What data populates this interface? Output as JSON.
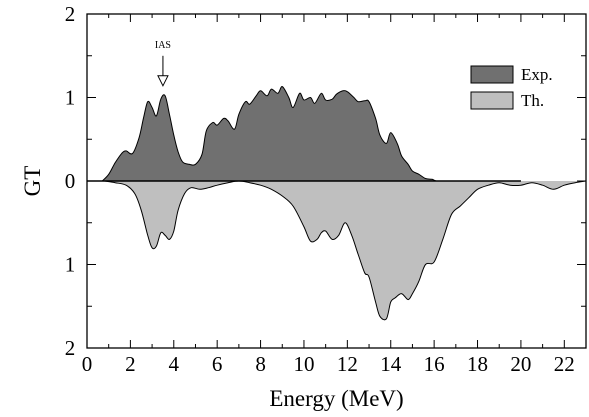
{
  "chart_data": {
    "type": "area",
    "xlabel": "Energy (MeV)",
    "ylabel": "GT",
    "xlim": [
      0,
      23
    ],
    "ylim": [
      -2,
      2
    ],
    "x_ticks": [
      0,
      2,
      4,
      6,
      8,
      10,
      12,
      14,
      16,
      18,
      20,
      22
    ],
    "x_tick_labels": [
      "0",
      "2",
      "4",
      "6",
      "8",
      "10",
      "12",
      "14",
      "16",
      "18",
      "20",
      "22"
    ],
    "y_ticks": [
      2,
      1,
      0,
      -1,
      -2
    ],
    "y_tick_labels": [
      "2",
      "1",
      "0",
      "1",
      "2"
    ],
    "grid": false,
    "legend_position": "top-right",
    "colors": {
      "exp": "#707070",
      "th": "#bfbfbf",
      "outline": "#000000"
    },
    "series": [
      {
        "name": "Exp.",
        "x": [
          0.7,
          1.0,
          1.3,
          1.6,
          1.8,
          2.1,
          2.4,
          2.6,
          2.8,
          3.0,
          3.2,
          3.4,
          3.6,
          3.8,
          4.0,
          4.2,
          4.4,
          4.7,
          5.0,
          5.3,
          5.5,
          5.8,
          6.0,
          6.3,
          6.5,
          6.8,
          7.0,
          7.3,
          7.5,
          7.8,
          8.0,
          8.3,
          8.5,
          8.8,
          9.0,
          9.3,
          9.5,
          9.8,
          10.0,
          10.3,
          10.5,
          10.8,
          11.0,
          11.3,
          11.5,
          11.8,
          12.0,
          12.3,
          12.5,
          12.8,
          13.0,
          13.3,
          13.5,
          13.8,
          14.0,
          14.3,
          14.5,
          14.8,
          15.0,
          15.3,
          15.6,
          15.9,
          16.1,
          16.5,
          17.0,
          18.0,
          20.0
        ],
        "y": [
          0.0,
          0.08,
          0.22,
          0.33,
          0.36,
          0.33,
          0.52,
          0.75,
          0.95,
          0.88,
          0.78,
          0.98,
          1.02,
          0.8,
          0.55,
          0.35,
          0.23,
          0.2,
          0.2,
          0.32,
          0.6,
          0.7,
          0.67,
          0.75,
          0.72,
          0.62,
          0.8,
          0.95,
          0.92,
          1.02,
          1.08,
          1.02,
          1.1,
          1.05,
          1.13,
          1.0,
          0.88,
          1.05,
          0.97,
          1.0,
          0.93,
          1.05,
          0.97,
          0.98,
          1.04,
          1.08,
          1.07,
          1.0,
          0.95,
          0.96,
          0.95,
          0.75,
          0.55,
          0.45,
          0.58,
          0.45,
          0.3,
          0.2,
          0.12,
          0.08,
          0.03,
          0.02,
          0.0,
          0.0,
          0.0,
          0.0,
          0.0
        ]
      },
      {
        "name": "Th.",
        "x": [
          0.8,
          1.3,
          1.8,
          2.2,
          2.5,
          2.8,
          3.0,
          3.2,
          3.4,
          3.6,
          3.8,
          4.0,
          4.2,
          4.5,
          4.8,
          5.2,
          5.6,
          6.0,
          6.5,
          7.0,
          7.5,
          8.0,
          8.5,
          9.0,
          9.5,
          10.0,
          10.3,
          10.6,
          10.8,
          11.0,
          11.3,
          11.6,
          11.9,
          12.2,
          12.5,
          12.8,
          13.0,
          13.3,
          13.5,
          13.8,
          14.0,
          14.2,
          14.5,
          14.8,
          15.0,
          15.3,
          15.6,
          16.0,
          16.4,
          16.8,
          17.2,
          17.6,
          18.0,
          18.5,
          19.0,
          19.5,
          20.0,
          20.5,
          21.0,
          21.5,
          22.0,
          22.5,
          23.0
        ],
        "y": [
          0.0,
          -0.02,
          -0.05,
          -0.15,
          -0.35,
          -0.65,
          -0.8,
          -0.78,
          -0.62,
          -0.65,
          -0.7,
          -0.6,
          -0.35,
          -0.15,
          -0.08,
          -0.1,
          -0.08,
          -0.05,
          -0.02,
          0.0,
          -0.02,
          -0.05,
          -0.1,
          -0.18,
          -0.3,
          -0.55,
          -0.72,
          -0.7,
          -0.62,
          -0.6,
          -0.7,
          -0.65,
          -0.5,
          -0.65,
          -0.88,
          -1.1,
          -1.15,
          -1.45,
          -1.62,
          -1.65,
          -1.45,
          -1.4,
          -1.35,
          -1.42,
          -1.35,
          -1.2,
          -1.0,
          -0.97,
          -0.7,
          -0.4,
          -0.3,
          -0.2,
          -0.1,
          -0.05,
          -0.02,
          -0.05,
          -0.05,
          -0.02,
          -0.05,
          -0.1,
          -0.05,
          -0.02,
          0.0
        ]
      }
    ],
    "annotations": [
      {
        "text": "IAS",
        "x": 3.5,
        "arrow_to_y": 1.14
      }
    ]
  }
}
